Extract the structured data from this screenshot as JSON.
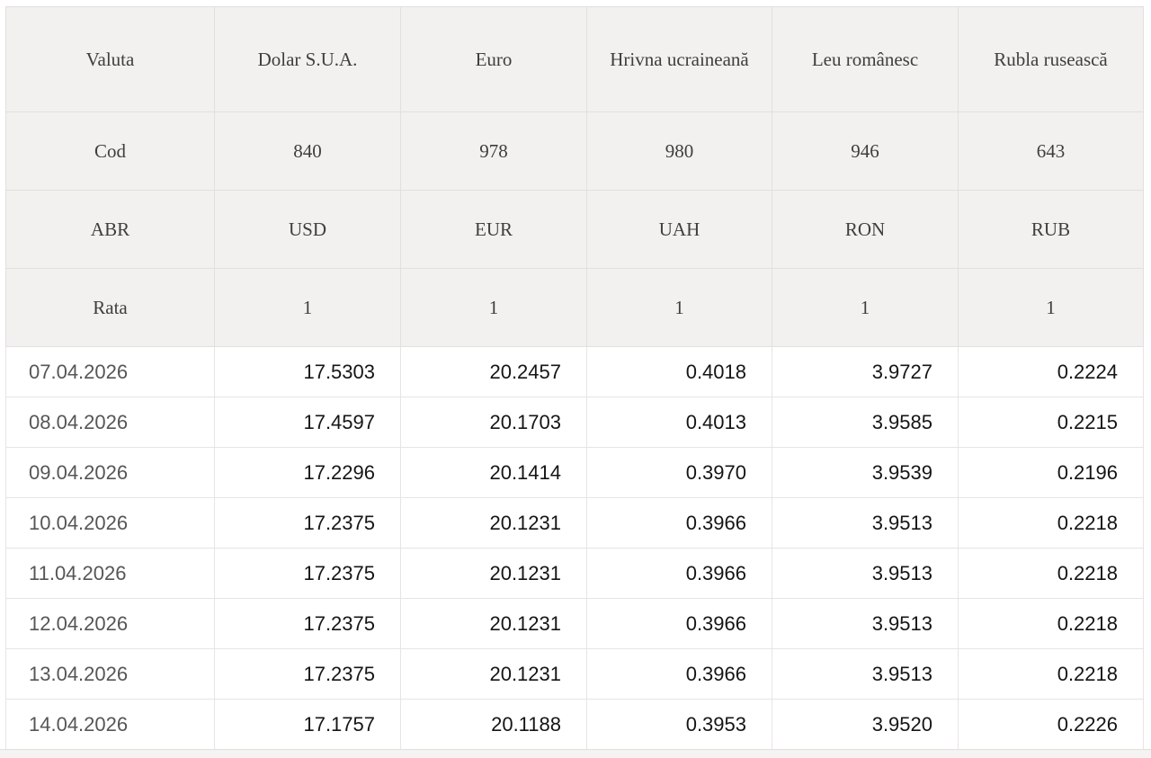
{
  "table": {
    "meta_rows": [
      {
        "label": "Valuta",
        "values": [
          "Dolar S.U.A.",
          "Euro",
          "Hrivna ucraineană",
          "Leu românesc",
          "Rubla rusească"
        ]
      },
      {
        "label": "Cod",
        "values": [
          "840",
          "978",
          "980",
          "946",
          "643"
        ]
      },
      {
        "label": "ABR",
        "values": [
          "USD",
          "EUR",
          "UAH",
          "RON",
          "RUB"
        ]
      },
      {
        "label": "Rata",
        "values": [
          "1",
          "1",
          "1",
          "1",
          "1"
        ]
      }
    ],
    "data_rows": [
      {
        "date": "07.04.2026",
        "values": [
          "17.5303",
          "20.2457",
          "0.4018",
          "3.9727",
          "0.2224"
        ]
      },
      {
        "date": "08.04.2026",
        "values": [
          "17.4597",
          "20.1703",
          "0.4013",
          "3.9585",
          "0.2215"
        ]
      },
      {
        "date": "09.04.2026",
        "values": [
          "17.2296",
          "20.1414",
          "0.3970",
          "3.9539",
          "0.2196"
        ]
      },
      {
        "date": "10.04.2026",
        "values": [
          "17.2375",
          "20.1231",
          "0.3966",
          "3.9513",
          "0.2218"
        ]
      },
      {
        "date": "11.04.2026",
        "values": [
          "17.2375",
          "20.1231",
          "0.3966",
          "3.9513",
          "0.2218"
        ]
      },
      {
        "date": "12.04.2026",
        "values": [
          "17.2375",
          "20.1231",
          "0.3966",
          "3.9513",
          "0.2218"
        ]
      },
      {
        "date": "13.04.2026",
        "values": [
          "17.2375",
          "20.1231",
          "0.3966",
          "3.9513",
          "0.2218"
        ]
      },
      {
        "date": "14.04.2026",
        "values": [
          "17.1757",
          "20.1188",
          "0.3953",
          "3.9520",
          "0.2226"
        ]
      }
    ],
    "colors": {
      "header_bg": "#f2f1ef",
      "header_text": "#3f3e3c",
      "border_meta": "#e2e0dd",
      "border_data": "#e6e5e3",
      "date_text": "#565656",
      "value_text": "#151515",
      "strip_bg": "#f4f3f1"
    }
  }
}
